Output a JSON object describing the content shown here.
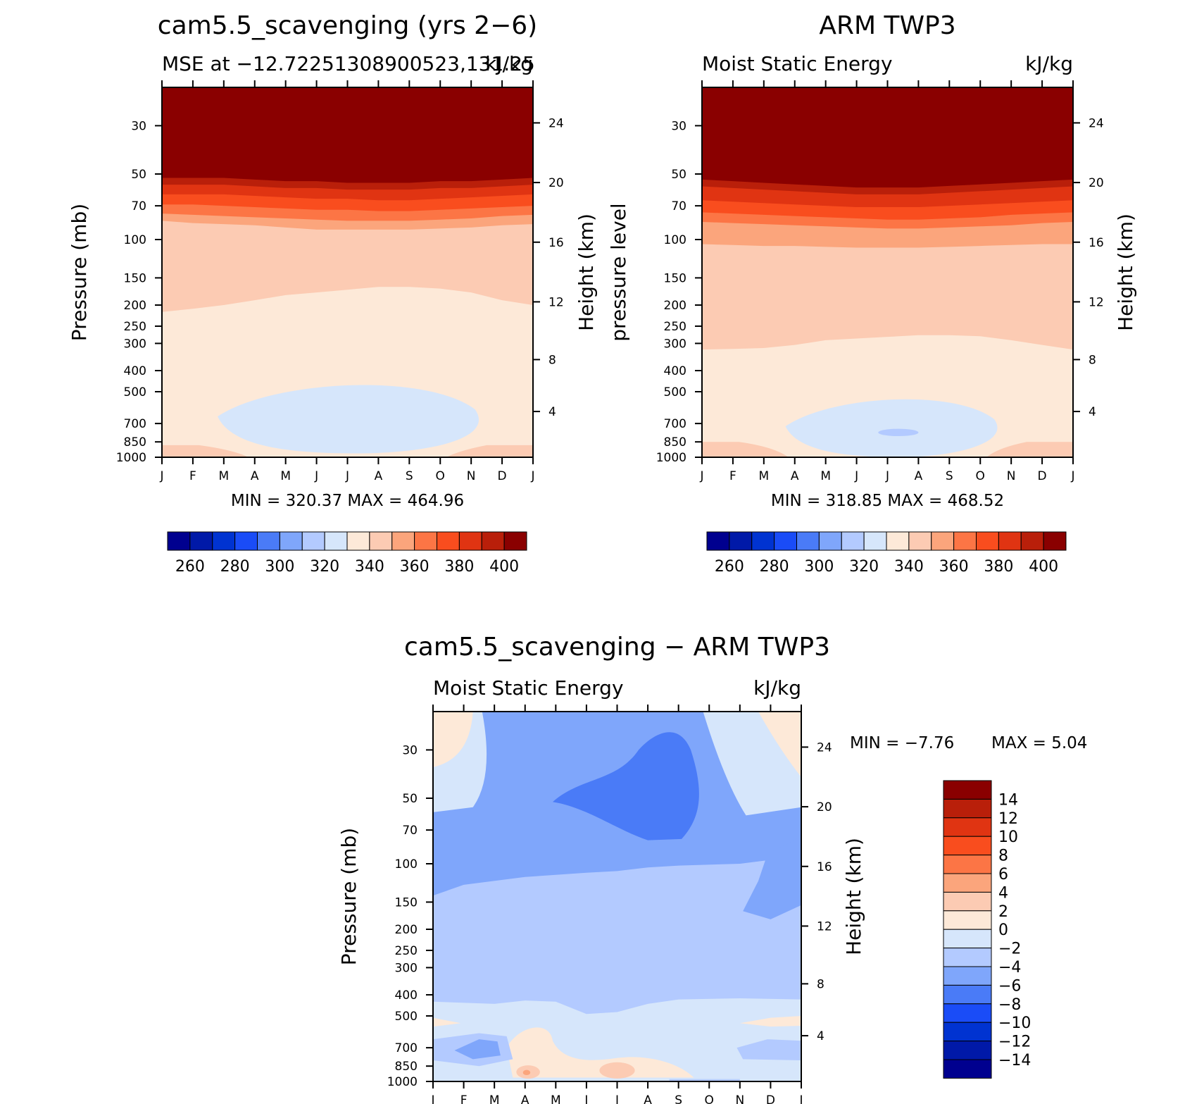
{
  "panels": [
    {
      "id": "model",
      "title": "cam5.5_scavenging (yrs 2−6)",
      "subtitle_left": "MSE at −12.72251308900523,131.25",
      "subtitle_right": "kJ/kg",
      "ylabel": "Pressure (mb)",
      "ylabel_right": "Height (km)",
      "stats": "MIN = 320.37 MAX = 464.96"
    },
    {
      "id": "obs",
      "title": "ARM TWP3",
      "subtitle_left": "Moist Static Energy",
      "subtitle_right": "kJ/kg",
      "ylabel": "pressure level",
      "ylabel_right": "Height (km)",
      "stats": "MIN = 318.85 MAX = 468.52"
    },
    {
      "id": "diff",
      "title": "cam5.5_scavenging − ARM TWP3",
      "subtitle_left": "Moist Static Energy",
      "subtitle_right": "kJ/kg",
      "ylabel": "Pressure (mb)",
      "ylabel_right": "Height (km)",
      "stats_min": "MIN =   −7.76",
      "stats_max": "MAX =     5.04"
    }
  ],
  "chart_data": [
    {
      "type": "heatmap",
      "panel": "model",
      "x": [
        "J",
        "F",
        "M",
        "A",
        "M",
        "J",
        "J",
        "A",
        "S",
        "O",
        "N",
        "D",
        "J"
      ],
      "y_ticks": [
        30,
        50,
        70,
        100,
        150,
        200,
        250,
        300,
        400,
        500,
        700,
        850,
        1000
      ],
      "y_right_ticks": [
        24,
        20,
        16,
        12,
        8,
        4
      ],
      "y_scale": "log",
      "ylim": [
        20,
        1000
      ],
      "contour_levels": [
        260,
        270,
        280,
        290,
        300,
        310,
        320,
        330,
        340,
        350,
        360,
        370,
        380,
        390,
        400
      ],
      "colorbar_labels": [
        "260",
        "280",
        "300",
        "320",
        "340",
        "360",
        "380",
        "400"
      ],
      "boundaries": [
        {
          "upper": 340,
          "pressure_mb": [
            215,
            208,
            200,
            190,
            180,
            175,
            170,
            165,
            165,
            168,
            175,
            190,
            200
          ]
        },
        {
          "upper": 350,
          "pressure_mb": [
            82,
            84,
            85,
            86,
            88,
            90,
            90,
            90,
            90,
            89,
            88,
            86,
            85
          ]
        },
        {
          "upper": 360,
          "pressure_mb": [
            76,
            77,
            78,
            79,
            80,
            81,
            82,
            82,
            82,
            81,
            80,
            78,
            77
          ]
        },
        {
          "upper": 370,
          "pressure_mb": [
            69,
            69,
            70,
            71,
            72,
            73,
            73,
            74,
            74,
            73,
            72,
            71,
            70
          ]
        },
        {
          "upper": 380,
          "pressure_mb": [
            62,
            62,
            62,
            63,
            64,
            65,
            65,
            66,
            66,
            65,
            64,
            63,
            62
          ]
        },
        {
          "upper": 390,
          "pressure_mb": [
            56,
            56,
            56,
            57,
            58,
            58,
            59,
            59,
            59,
            58,
            58,
            57,
            56
          ]
        }
      ],
      "low_region": {
        "min": 320,
        "max": 330,
        "months_from": 1.8,
        "months_to": 10.8,
        "pressure_mb": [
          440,
          960
        ]
      },
      "surface_band": {
        "value": 345,
        "pressure_mb": [
          880,
          960
        ]
      }
    },
    {
      "type": "heatmap",
      "panel": "obs",
      "x": [
        "J",
        "F",
        "M",
        "A",
        "M",
        "J",
        "J",
        "A",
        "S",
        "O",
        "N",
        "D",
        "J"
      ],
      "y_ticks": [
        30,
        50,
        70,
        100,
        150,
        200,
        250,
        300,
        400,
        500,
        700,
        850,
        1000
      ],
      "y_right_ticks": [
        24,
        20,
        16,
        12,
        8,
        4
      ],
      "y_scale": "log",
      "ylim": [
        20,
        1000
      ],
      "contour_levels": [
        260,
        270,
        280,
        290,
        300,
        310,
        320,
        330,
        340,
        350,
        360,
        370,
        380,
        390,
        400
      ],
      "colorbar_labels": [
        "260",
        "280",
        "300",
        "320",
        "340",
        "360",
        "380",
        "400"
      ],
      "boundaries": [
        {
          "upper": 340,
          "pressure_mb": [
            320,
            318,
            315,
            305,
            290,
            285,
            280,
            275,
            275,
            278,
            290,
            305,
            320
          ]
        },
        {
          "upper": 350,
          "pressure_mb": [
            105,
            106,
            107,
            107,
            108,
            109,
            109,
            109,
            108,
            107,
            106,
            105,
            105
          ]
        },
        {
          "upper": 360,
          "pressure_mb": [
            83,
            84,
            85,
            86,
            87,
            88,
            89,
            89,
            88,
            87,
            86,
            84,
            83
          ]
        },
        {
          "upper": 370,
          "pressure_mb": [
            75,
            76,
            77,
            78,
            79,
            80,
            81,
            81,
            80,
            79,
            77,
            76,
            75
          ]
        },
        {
          "upper": 380,
          "pressure_mb": [
            66,
            67,
            68,
            69,
            70,
            71,
            71,
            71,
            70,
            69,
            68,
            67,
            66
          ]
        },
        {
          "upper": 390,
          "pressure_mb": [
            57,
            58,
            59,
            60,
            61,
            62,
            62,
            62,
            61,
            60,
            59,
            58,
            57
          ]
        }
      ],
      "low_region": {
        "min": 320,
        "max": 330,
        "months_from": 2.7,
        "months_to": 10.0,
        "pressure_mb": [
          520,
          1000
        ]
      },
      "inner_low_region": {
        "min": 310,
        "max": 320,
        "months_from": 5.7,
        "months_to": 7.0,
        "pressure_mb": [
          740,
          800
        ]
      },
      "surface_band": {
        "value": 345,
        "pressure_mb": [
          850,
          1000
        ]
      }
    },
    {
      "type": "heatmap",
      "panel": "diff",
      "x": [
        "J",
        "F",
        "M",
        "A",
        "M",
        "J",
        "J",
        "A",
        "S",
        "O",
        "N",
        "D",
        "J"
      ],
      "y_ticks": [
        30,
        50,
        70,
        100,
        150,
        200,
        250,
        300,
        400,
        500,
        700,
        850,
        1000
      ],
      "y_right_ticks": [
        24,
        20,
        16,
        12,
        8,
        4
      ],
      "y_scale": "log",
      "ylim": [
        20,
        1000
      ],
      "contour_levels": [
        -14,
        -12,
        -10,
        -8,
        -6,
        -4,
        -2,
        0,
        2,
        4,
        6,
        8,
        10,
        12,
        14
      ],
      "colorbar_labels": [
        "14",
        "12",
        "10",
        "8",
        "6",
        "4",
        "2",
        "0",
        "−2",
        "−4",
        "−6",
        "−8",
        "−10",
        "−12",
        "−14"
      ],
      "regions": [
        {
          "min": -8,
          "max": -6,
          "description_months": [
            3.8,
            9.0
          ],
          "pressure_mb": [
            44,
            78
          ]
        },
        {
          "min": -6,
          "max": -4,
          "description_months": [
            0,
            12
          ],
          "pressure_mb": [
            20,
            140
          ]
        },
        {
          "min": -4,
          "max": -2,
          "description_months": [
            0,
            12
          ],
          "pressure_mb": [
            120,
            460
          ]
        },
        {
          "min": -2,
          "max": 0,
          "description_months": [
            0,
            12
          ],
          "pressure_mb": [
            420,
            1000
          ]
        },
        {
          "min": 0,
          "max": 2,
          "description_months": [
            0,
            1.8
          ],
          "pressure_mb": [
            20,
            45
          ]
        },
        {
          "min": 2,
          "max": 4,
          "description_months": [
            2.8,
            4.3
          ],
          "pressure_mb": [
            860,
            960
          ]
        }
      ],
      "stats": {
        "min": -7.76,
        "max": 5.04
      }
    }
  ],
  "colors": {
    "seq_260": "#00008f",
    "seq_270": "#0019a8",
    "seq_280": "#0033d1",
    "seq_290": "#1a4cf7",
    "seq_300": "#4a7bf7",
    "seq_310": "#7fa6fb",
    "seq_320": "#b3caff",
    "seq_330": "#d6e6fb",
    "seq_340": "#fde9d8",
    "seq_350": "#fccbb3",
    "seq_360": "#fba57c",
    "seq_370": "#fc7545",
    "seq_380": "#f94d1e",
    "seq_390": "#e03412",
    "seq_400": "#b91f0a",
    "seq_410": "#8a0000"
  }
}
